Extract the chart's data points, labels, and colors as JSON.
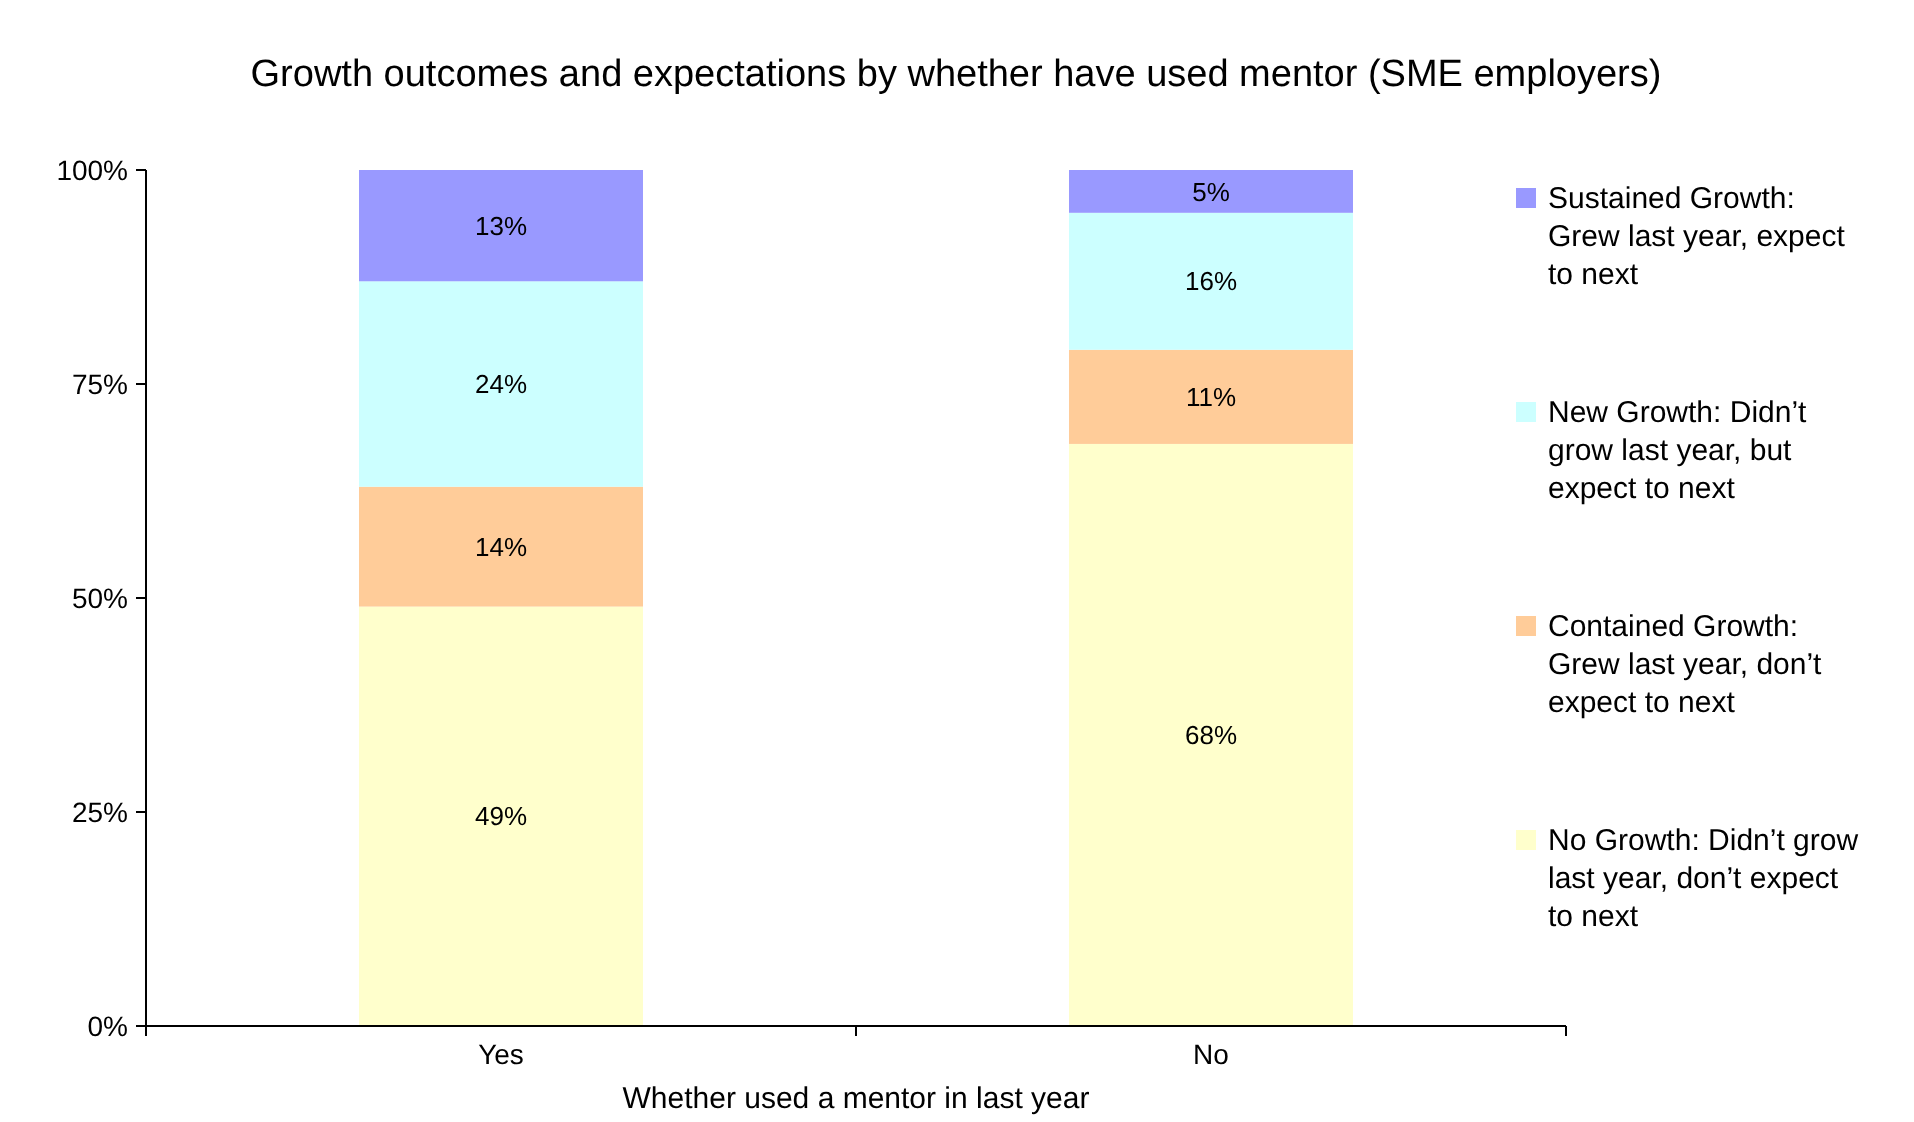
{
  "chart_data": {
    "type": "bar",
    "stacked": true,
    "title": "Growth outcomes and expectations by whether have used mentor (SME employers)",
    "xlabel": "Whether used a mentor in last year",
    "categories": [
      "Yes",
      "No"
    ],
    "series": [
      {
        "name": "No Growth: Didn’t grow last year, don’t expect to next",
        "color": "#ffffcc",
        "values": [
          49,
          68
        ],
        "value_labels": [
          "49%",
          "68%"
        ]
      },
      {
        "name": "Contained Growth: Grew last year, don’t expect to next",
        "color": "#ffcc99",
        "values": [
          14,
          11
        ],
        "value_labels": [
          "14%",
          "11%"
        ]
      },
      {
        "name": "New Growth: Didn’t grow last year, but expect to next",
        "color": "#ccffff",
        "values": [
          24,
          16
        ],
        "value_labels": [
          "24%",
          "16%"
        ]
      },
      {
        "name": "Sustained Growth: Grew last year, expect to next",
        "color": "#9999ff",
        "values": [
          13,
          5
        ],
        "value_labels": [
          "13%",
          "5%"
        ]
      }
    ],
    "ylim": [
      0,
      100
    ],
    "yticks": [
      {
        "value": 0,
        "label": "0%"
      },
      {
        "value": 25,
        "label": "25%"
      },
      {
        "value": 50,
        "label": "50%"
      },
      {
        "value": 75,
        "label": "75%"
      },
      {
        "value": 100,
        "label": "100%"
      }
    ],
    "grid": false,
    "legend": "right"
  }
}
